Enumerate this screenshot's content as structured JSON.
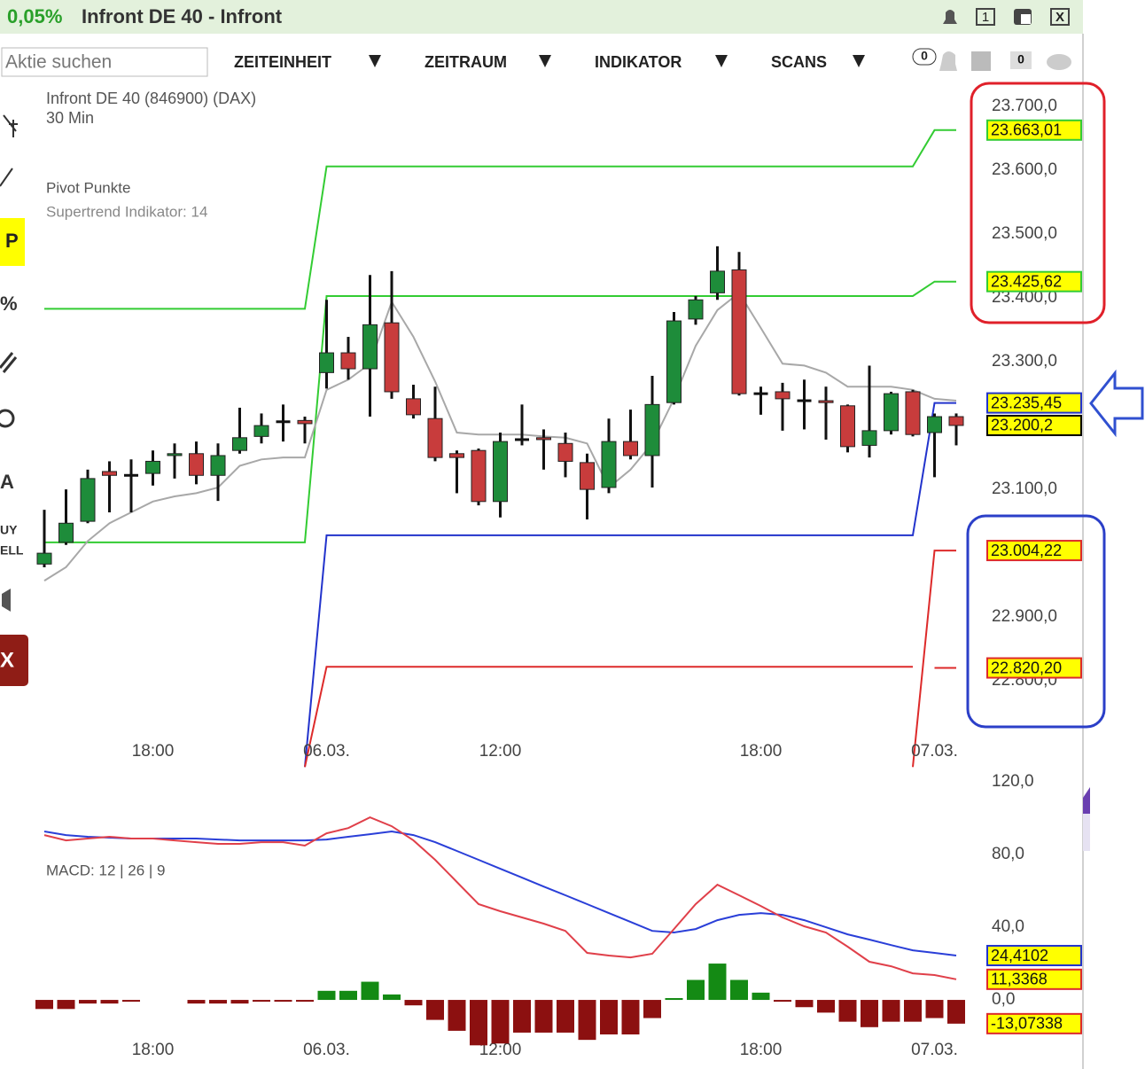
{
  "header": {
    "change": "0,05%",
    "title": "Infront DE 40 - Infront",
    "window_buttons": [
      "1",
      "X"
    ]
  },
  "toolbar": {
    "search_placeholder": "Aktie suchen",
    "menus": [
      "ZEITEINHEIT",
      "ZEITRAUM",
      "INDIKATOR",
      "SCANS"
    ],
    "badges": [
      "0",
      "0"
    ]
  },
  "left_tools": {
    "pivot": "P",
    "percent": "%",
    "text": "A",
    "buy": "UY",
    "sell": "ELL",
    "close": "X"
  },
  "chart_data": [
    {
      "type": "candlestick",
      "title": "Infront DE 40 (846900) (DAX)",
      "subtitle": "30 Min",
      "categories": [
        null,
        null,
        null,
        null,
        null,
        "18:00",
        null,
        null,
        null,
        null,
        null,
        null,
        null,
        "06.03.",
        null,
        null,
        null,
        null,
        null,
        null,
        null,
        "12:00",
        null,
        null,
        null,
        null,
        null,
        null,
        null,
        null,
        null,
        null,
        null,
        "18:00",
        null,
        null,
        null,
        null,
        null,
        null,
        null,
        "07.03.",
        null
      ],
      "open": [
        22983,
        23017,
        23050,
        23128,
        23122,
        23125,
        23153,
        23156,
        23122,
        23161,
        23183,
        23206,
        23208,
        23283,
        23314,
        23289,
        23361,
        23242,
        23211,
        23156,
        23161,
        23081,
        23178,
        23181,
        23172,
        23142,
        23103,
        23175,
        23153,
        23236,
        23367,
        23408,
        23444,
        23250,
        23253,
        23239,
        23239,
        23231,
        23169,
        23192,
        23253,
        23189,
        23214
      ],
      "high": [
        23068,
        23100,
        23131,
        23144,
        23147,
        23161,
        23172,
        23175,
        23172,
        23228,
        23219,
        23233,
        23214,
        23397,
        23339,
        23436,
        23442,
        23264,
        23261,
        23161,
        23164,
        23189,
        23233,
        23194,
        23189,
        23156,
        23211,
        23225,
        23278,
        23378,
        23403,
        23481,
        23472,
        23261,
        23267,
        23272,
        23261,
        23233,
        23294,
        23253,
        23256,
        23219,
        23219
      ],
      "low": [
        22978,
        23013,
        23047,
        23064,
        23064,
        23106,
        23117,
        23108,
        23082,
        23156,
        23172,
        23175,
        23172,
        23258,
        23272,
        23214,
        23242,
        23211,
        23144,
        23094,
        23075,
        23056,
        23169,
        23131,
        23119,
        23053,
        23094,
        23147,
        23103,
        23233,
        23358,
        23397,
        23247,
        23217,
        23192,
        23194,
        23178,
        23158,
        23150,
        23186,
        23183,
        23119,
        23169
      ],
      "close": [
        23000,
        23047,
        23117,
        23122,
        23122,
        23144,
        23156,
        23122,
        23153,
        23181,
        23200,
        23206,
        23203,
        23314,
        23289,
        23358,
        23253,
        23217,
        23150,
        23150,
        23081,
        23175,
        23178,
        23178,
        23144,
        23100,
        23175,
        23153,
        23233,
        23364,
        23397,
        23442,
        23250,
        23250,
        23242,
        23239,
        23236,
        23167,
        23192,
        23250,
        23186,
        23214,
        23200.2
      ],
      "up_color": "#1e8c3a",
      "down_color": "#c83c3c",
      "series": [
        {
          "name": "Supertrend Indikator: 14",
          "color": "#a8a8a8",
          "values": [
            22957,
            22978,
            23019,
            23047,
            23064,
            23081,
            23089,
            23094,
            23103,
            23137,
            23147,
            23150,
            23150,
            23256,
            23272,
            23297,
            23394,
            23339,
            23269,
            23189,
            23186,
            23186,
            23186,
            23183,
            23181,
            23172,
            23103,
            23131,
            23172,
            23242,
            23325,
            23381,
            23408,
            23353,
            23297,
            23294,
            23283,
            23261,
            23261,
            23261,
            23256,
            23242,
            23239
          ]
        }
      ],
      "pivots": {
        "name": "Pivot Punkte",
        "lines": [
          {
            "color": "#33cc33",
            "values": [
              23383,
              23383,
              23383,
              23383,
              23383,
              23383,
              23383,
              23383,
              23383,
              23383,
              23383,
              23383,
              23383,
              23606,
              23606,
              23606,
              23606,
              23606,
              23606,
              23606,
              23606,
              23606,
              23606,
              23606,
              23606,
              23606,
              23606,
              23606,
              23606,
              23606,
              23606,
              23606,
              23606,
              23606,
              23606,
              23606,
              23606,
              23606,
              23606,
              23606,
              23606,
              23663.01,
              23663.01
            ]
          },
          {
            "color": "#33cc33",
            "values": [
              23017,
              23017,
              23017,
              23017,
              23017,
              23017,
              23017,
              23017,
              23017,
              23017,
              23017,
              23017,
              23017,
              23403,
              23403,
              23403,
              23403,
              23403,
              23403,
              23403,
              23403,
              23403,
              23403,
              23403,
              23403,
              23403,
              23403,
              23403,
              23403,
              23403,
              23403,
              23403,
              23403,
              23403,
              23403,
              23403,
              23403,
              23403,
              23403,
              23403,
              23403,
              23425.62,
              23425.62
            ]
          },
          {
            "color": "#2233cc",
            "values": [
              null,
              null,
              null,
              null,
              null,
              null,
              null,
              null,
              null,
              null,
              null,
              null,
              22665,
              23028,
              23028,
              23028,
              23028,
              23028,
              23028,
              23028,
              23028,
              23028,
              23028,
              23028,
              23028,
              23028,
              23028,
              23028,
              23028,
              23028,
              23028,
              23028,
              23028,
              23028,
              23028,
              23028,
              23028,
              23028,
              23028,
              23028,
              23028,
              23235.45,
              23235.45
            ]
          },
          {
            "color": "#dd2a2a",
            "values": [
              null,
              null,
              null,
              null,
              null,
              null,
              null,
              null,
              null,
              null,
              null,
              null,
              22665,
              22822,
              22822,
              22822,
              22822,
              22822,
              22822,
              22822,
              22822,
              22822,
              22822,
              22822,
              22822,
              22822,
              22822,
              22822,
              22822,
              22822,
              22822,
              22822,
              22822,
              22822,
              22822,
              22822,
              22822,
              22822,
              22822,
              22822,
              22822,
              null,
              null
            ]
          },
          {
            "color": "#dd2a2a",
            "values": [
              null,
              null,
              null,
              null,
              null,
              null,
              null,
              null,
              null,
              null,
              null,
              null,
              null,
              null,
              null,
              null,
              null,
              null,
              null,
              null,
              null,
              null,
              null,
              null,
              null,
              null,
              null,
              null,
              null,
              null,
              null,
              null,
              null,
              null,
              null,
              null,
              null,
              null,
              null,
              null,
              22665,
              23004.22,
              23004.22
            ]
          },
          {
            "color": "#dd2a2a",
            "values": [
              null,
              null,
              null,
              null,
              null,
              null,
              null,
              null,
              null,
              null,
              null,
              null,
              null,
              null,
              null,
              null,
              null,
              null,
              null,
              null,
              null,
              null,
              null,
              null,
              null,
              null,
              null,
              null,
              null,
              null,
              null,
              null,
              null,
              null,
              null,
              null,
              null,
              null,
              null,
              null,
              null,
              22820.2,
              22820.2
            ]
          }
        ]
      },
      "ylim": [
        22714,
        23728
      ],
      "yticks": [
        {
          "value": 23700,
          "label": "23.700,0"
        },
        {
          "value": 23600,
          "label": "23.600,0"
        },
        {
          "value": 23500,
          "label": "23.500,0"
        },
        {
          "value": 23400,
          "label": "23.400,0"
        },
        {
          "value": 23300,
          "label": "23.300,0"
        },
        {
          "value": 23100,
          "label": "23.100,0"
        },
        {
          "value": 22900,
          "label": "22.900,0"
        },
        {
          "value": 22800,
          "label": "22.800,0"
        }
      ],
      "price_labels": [
        {
          "value": 23663.01,
          "label": "23.663,01",
          "color": "#33cc33"
        },
        {
          "value": 23425.62,
          "label": "23.425,62",
          "color": "#33cc33"
        },
        {
          "value": 23235.45,
          "label": "23.235,45",
          "color": "#2233cc"
        },
        {
          "value": 23200.2,
          "label": "23.200,2",
          "color": "#000000"
        },
        {
          "value": 23004.22,
          "label": "23.004,22",
          "color": "#dd2a2a"
        },
        {
          "value": 22820.2,
          "label": "22.820,20",
          "color": "#dd2a2a"
        }
      ]
    },
    {
      "type": "macd",
      "title": "MACD: 12 | 26 | 9",
      "categories": [
        null,
        null,
        null,
        null,
        null,
        "18:00",
        null,
        null,
        null,
        null,
        null,
        null,
        null,
        "06.03.",
        null,
        null,
        null,
        null,
        null,
        null,
        null,
        "12:00",
        null,
        null,
        null,
        null,
        null,
        null,
        null,
        null,
        null,
        null,
        null,
        "18:00",
        null,
        null,
        null,
        null,
        null,
        null,
        null,
        "07.03.",
        null
      ],
      "series": [
        {
          "color": "#2a3fd8",
          "values": [
            92.7,
            90.7,
            89.8,
            89.3,
            88.8,
            88.8,
            88.8,
            88.8,
            88.3,
            87.8,
            87.8,
            87.8,
            87.8,
            88.3,
            89.8,
            91.2,
            92.7,
            90.7,
            86.8,
            82.0,
            77.1,
            72.2,
            67.3,
            62.4,
            57.6,
            52.7,
            47.8,
            42.9,
            38.0,
            37.1,
            39.0,
            43.9,
            46.8,
            47.8,
            46.8,
            43.9,
            40.0,
            36.1,
            33.2,
            30.2,
            27.3,
            25.9,
            24.4102
          ]
        },
        {
          "color": "#e0404a",
          "values": [
            90.7,
            87.8,
            88.8,
            89.8,
            88.8,
            88.8,
            87.8,
            86.8,
            85.9,
            85.9,
            86.8,
            86.8,
            84.9,
            91.7,
            94.6,
            100.5,
            95.6,
            87.8,
            77.1,
            64.9,
            52.7,
            48.8,
            45.4,
            42.0,
            38.0,
            25.9,
            24.4,
            23.4,
            25.4,
            39.0,
            52.7,
            63.4,
            57.6,
            51.7,
            45.4,
            40.5,
            37.1,
            29.3,
            21.0,
            18.5,
            14.6,
            13.7,
            11.3368
          ]
        }
      ],
      "histogram": [
        -5,
        -5,
        -2,
        -2,
        -1,
        null,
        null,
        -2,
        -2,
        -2,
        -1,
        -1,
        -1,
        5,
        5,
        10,
        3,
        -3,
        -11,
        -17,
        -25,
        -24,
        -18,
        -18,
        -18,
        -22,
        -19,
        -19,
        -10,
        1,
        11,
        20,
        11,
        4,
        -1,
        -4,
        -7,
        -12,
        -15,
        -12,
        -12,
        -10,
        -13.07338
      ],
      "pos_color": "#148a14",
      "neg_color": "#8c1010",
      "ylim": [
        -35.1,
        125.9
      ],
      "yticks": [
        {
          "value": 120,
          "label": "120,0"
        },
        {
          "value": 80,
          "label": "80,0"
        },
        {
          "value": 40,
          "label": "40,0"
        },
        {
          "value": 0,
          "label": "0,0"
        }
      ],
      "price_labels": [
        {
          "value": 24.4102,
          "label": "24,4102",
          "color": "#2233cc"
        },
        {
          "value": 11.3368,
          "label": "11,3368",
          "color": "#dd2a2a"
        },
        {
          "value": -13.07338,
          "label": "-13,07338",
          "color": "#dd2a2a"
        }
      ]
    }
  ]
}
